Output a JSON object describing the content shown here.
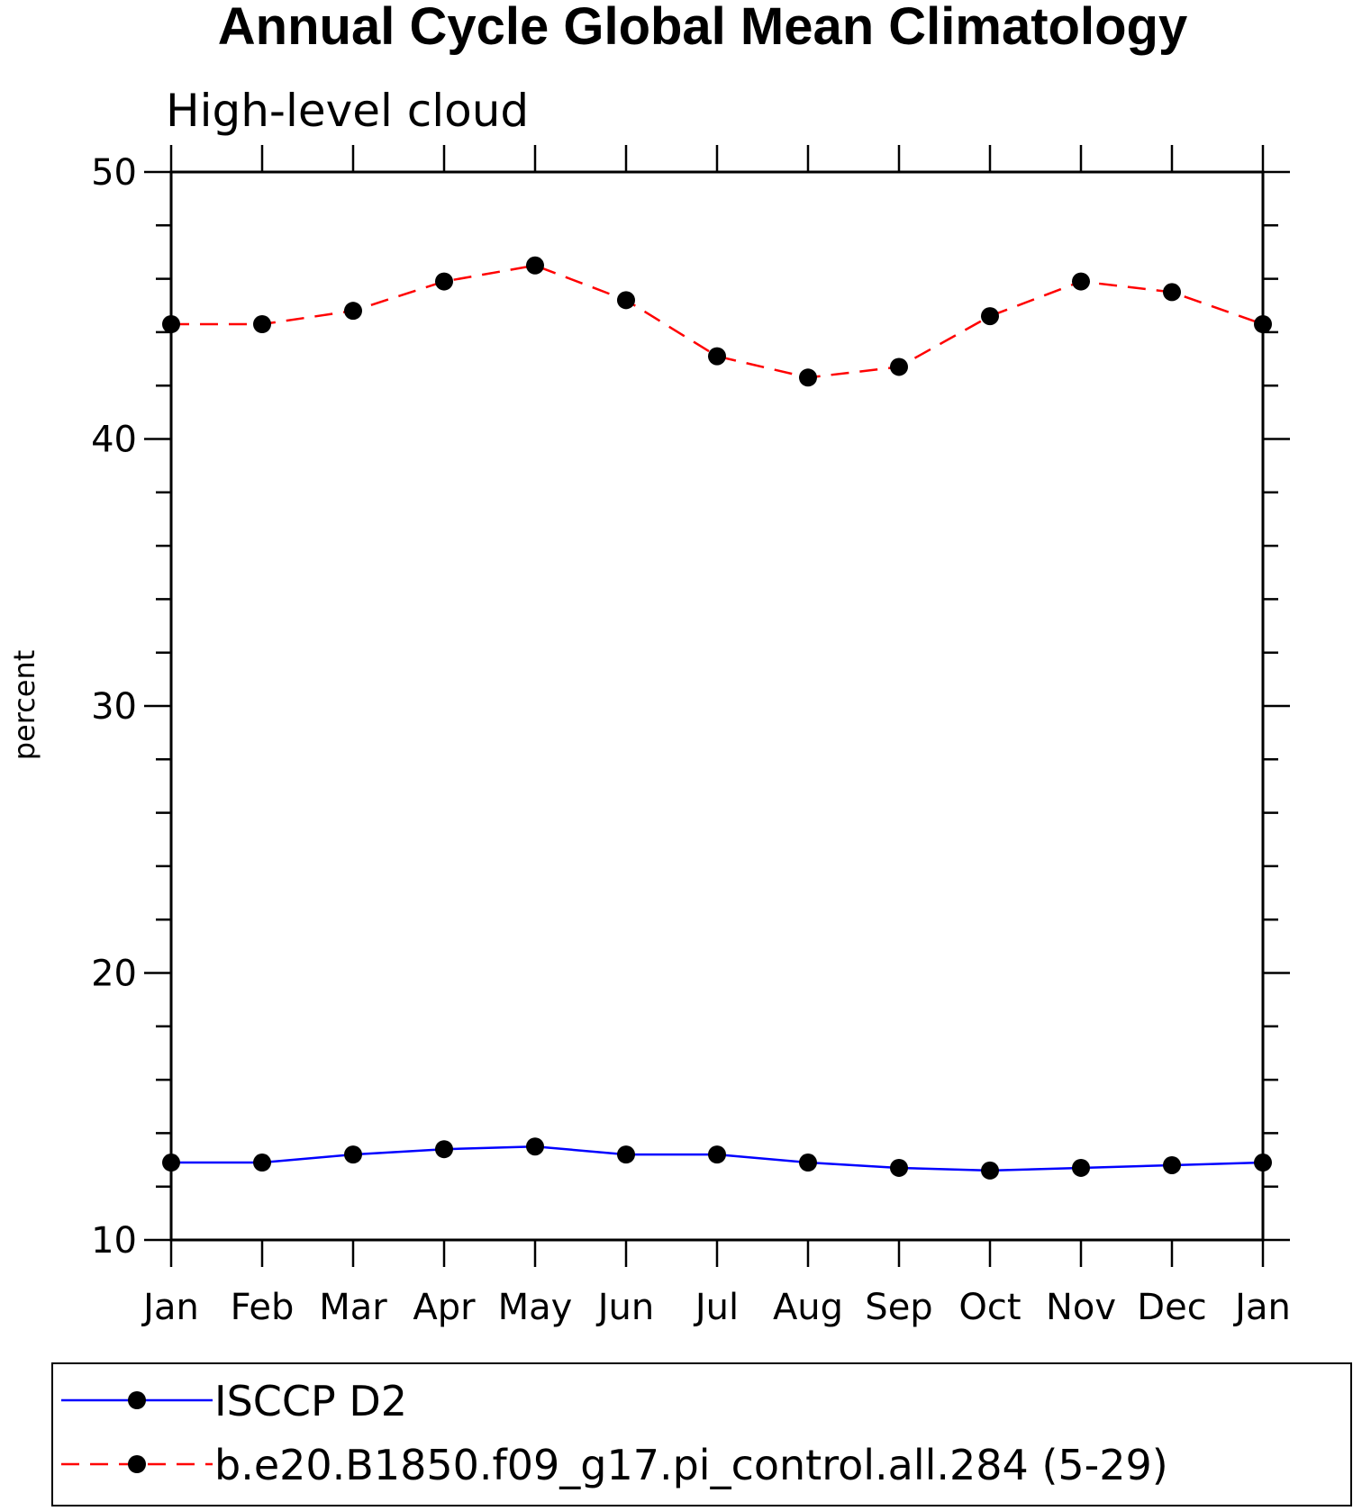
{
  "chart_data": {
    "type": "line",
    "title": "Annual Cycle Global Mean Climatology",
    "subtitle": "High-level cloud",
    "xlabel": "",
    "ylabel": "percent",
    "categories": [
      "Jan",
      "Feb",
      "Mar",
      "Apr",
      "May",
      "Jun",
      "Jul",
      "Aug",
      "Sep",
      "Oct",
      "Nov",
      "Dec",
      "Jan"
    ],
    "ylim": [
      10,
      50
    ],
    "y_ticks": [
      10,
      20,
      30,
      40,
      50
    ],
    "y_minor_step": 2,
    "grid": false,
    "legend_position": "bottom",
    "series": [
      {
        "name": "ISCCP D2",
        "color": "#0000ff",
        "dash": "solid",
        "marker": "filled-circle",
        "marker_color": "#000000",
        "values": [
          12.9,
          12.9,
          13.2,
          13.4,
          13.5,
          13.2,
          13.2,
          12.9,
          12.7,
          12.6,
          12.7,
          12.8,
          12.9
        ]
      },
      {
        "name": "b.e20.B1850.f09_g17.pi_control.all.284 (5-29)",
        "color": "#ff0000",
        "dash": "dashed",
        "marker": "filled-circle",
        "marker_color": "#000000",
        "values": [
          44.3,
          44.3,
          44.8,
          45.9,
          46.5,
          45.2,
          43.1,
          42.3,
          42.7,
          44.6,
          45.9,
          45.5,
          44.3
        ]
      }
    ]
  }
}
